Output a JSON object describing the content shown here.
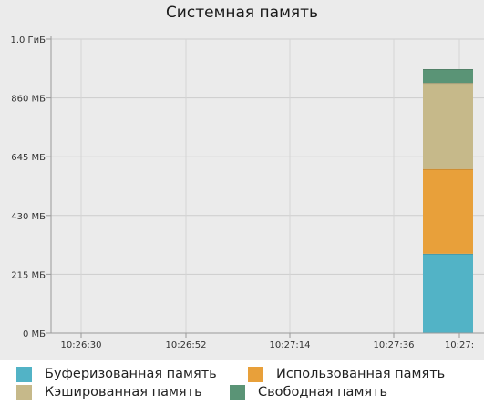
{
  "chart_data": {
    "type": "area",
    "stacked": true,
    "title": "Системная память",
    "xlabel": "",
    "ylabel": "",
    "x_ticks": [
      "10:26:30",
      "10:26:52",
      "10:27:14",
      "10:27:36",
      "10:27:"
    ],
    "y_ticks": [
      "0 МБ",
      "215 МБ",
      "430 МБ",
      "645 МБ",
      "860 МБ",
      "1.0 ГиБ"
    ],
    "y_tick_values": [
      0,
      215,
      430,
      645,
      860,
      1075
    ],
    "ylim": [
      0,
      1075
    ],
    "x_range": [
      "10:26:30",
      "10:27:58"
    ],
    "data_x_range": [
      "10:27:50",
      "10:27:58"
    ],
    "legend_position": "bottom",
    "series": [
      {
        "name": "Буферизованная память",
        "value": 290,
        "color": "#52b3c6"
      },
      {
        "name": "Использованная память",
        "value": 310,
        "color": "#e8a03a"
      },
      {
        "name": "Кэшированная память",
        "value": 315,
        "color": "#c6b98a"
      },
      {
        "name": "Свободная память",
        "value": 50,
        "color": "#5a9476"
      }
    ]
  }
}
